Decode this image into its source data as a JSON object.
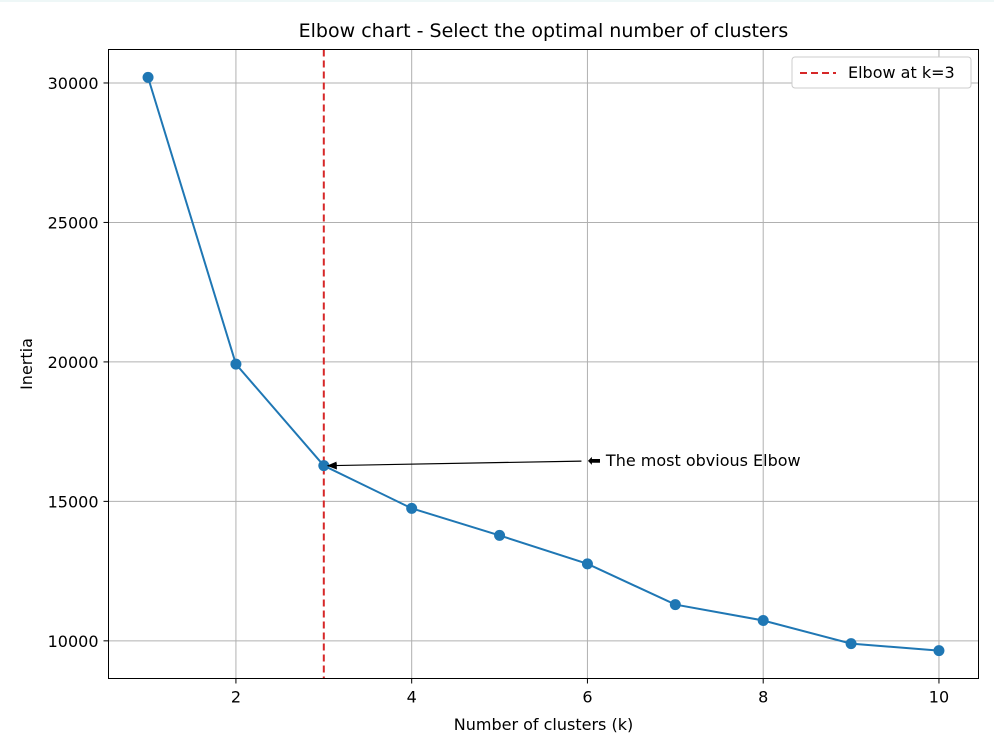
{
  "chart_data": {
    "type": "line",
    "title": "Elbow chart - Select the optimal number of clusters",
    "xlabel": "Number of clusters (k)",
    "ylabel": "Inertia",
    "x": [
      1,
      2,
      3,
      4,
      5,
      6,
      7,
      8,
      9,
      10
    ],
    "series": [
      {
        "values": [
          30200,
          19920,
          16280,
          14750,
          13780,
          12760,
          11300,
          10730,
          9900,
          9650
        ],
        "color": "#1f77b4",
        "marker": "circle"
      }
    ],
    "xlim": [
      0.55,
      10.45
    ],
    "ylim": [
      8650,
      31200
    ],
    "xticks": [
      2,
      4,
      6,
      8,
      10
    ],
    "yticks": [
      10000,
      15000,
      20000,
      25000,
      30000
    ],
    "grid": true,
    "vline": {
      "x": 3,
      "color": "#d62728",
      "style": "dashed",
      "label": "Elbow at k=3"
    },
    "annotation": {
      "text": "⬅ The most obvious Elbow",
      "text_x": 6,
      "text_y": 16480,
      "arrow_to_x": 3,
      "arrow_to_y": 16280
    },
    "legend": {
      "placement": "top-right"
    }
  }
}
